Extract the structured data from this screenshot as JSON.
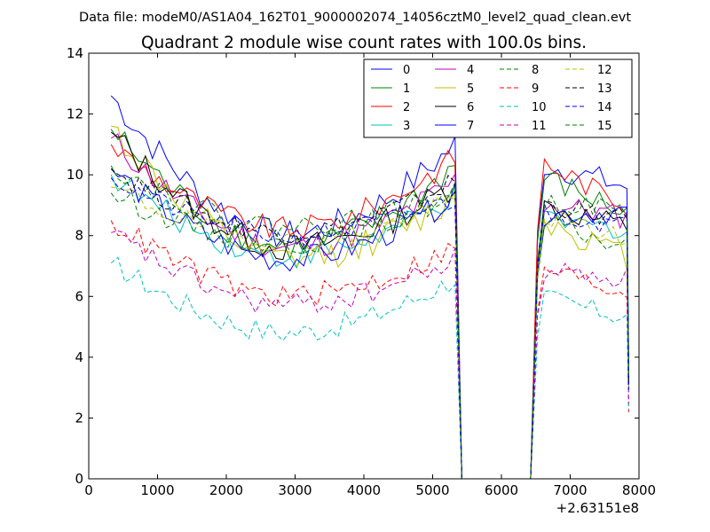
{
  "chart_data": {
    "type": "line",
    "suptitle": "Data file: modeM0/AS1A04_162T01_9000002074_14056cztM0_level2_quad_clean.evt",
    "title": "Quadrant 2 module wise count rates with 100.0s bins.",
    "xlabel": "",
    "ylabel": "",
    "xlim": [
      0,
      8000
    ],
    "ylim": [
      0,
      14
    ],
    "x_ticks": [
      0,
      1000,
      2000,
      3000,
      4000,
      5000,
      6000,
      7000,
      8000
    ],
    "x_tick_labels": [
      "0",
      "1000",
      "2000",
      "3000",
      "4000",
      "5000",
      "6000",
      "7000",
      "8000"
    ],
    "y_ticks": [
      0,
      2,
      4,
      6,
      8,
      10,
      12,
      14
    ],
    "y_tick_labels": [
      "0",
      "2",
      "4",
      "6",
      "8",
      "10",
      "12",
      "14"
    ],
    "x_offset_label": "+2.63151e8",
    "grid": false,
    "legend_position": "top-right",
    "legend_columns": 4,
    "time_grid": {
      "seg1_start": 325,
      "seg1_end": 5325,
      "gap_end": 6425,
      "seg2_start": 6525,
      "seg2_end": 7825,
      "step": 100
    },
    "series": [
      {
        "name": "0",
        "color": "#0000ff",
        "style": "solid",
        "start": 12.6,
        "min": 8.0,
        "end": 11.0,
        "seg2": [
          10.4,
          9.6
        ]
      },
      {
        "name": "1",
        "color": "#008000",
        "style": "solid",
        "start": 11.5,
        "min": 7.6,
        "end": 10.3,
        "seg2": [
          10.0,
          8.7
        ]
      },
      {
        "name": "2",
        "color": "#ff0000",
        "style": "solid",
        "start": 11.0,
        "min": 8.2,
        "end": 10.6,
        "seg2": [
          10.5,
          9.0
        ]
      },
      {
        "name": "3",
        "color": "#00bfbf",
        "style": "solid",
        "start": 10.0,
        "min": 7.3,
        "end": 9.3,
        "seg2": [
          8.5,
          8.2
        ]
      },
      {
        "name": "4",
        "color": "#bf00bf",
        "style": "solid",
        "start": 11.2,
        "min": 7.6,
        "end": 9.8,
        "seg2": [
          9.1,
          8.6
        ]
      },
      {
        "name": "5",
        "color": "#bfbf00",
        "style": "solid",
        "start": 11.6,
        "min": 7.2,
        "end": 9.2,
        "seg2": [
          8.6,
          7.3
        ]
      },
      {
        "name": "6",
        "color": "#000000",
        "style": "solid",
        "start": 11.4,
        "min": 7.6,
        "end": 9.7,
        "seg2": [
          9.0,
          8.3
        ]
      },
      {
        "name": "7",
        "color": "#0000ff",
        "style": "solid",
        "start": 10.2,
        "min": 7.2,
        "end": 9.3,
        "seg2": [
          8.7,
          8.8
        ]
      },
      {
        "name": "8",
        "color": "#008000",
        "style": "dashed",
        "start": 9.4,
        "min": 7.7,
        "end": 9.4,
        "seg2": [
          8.5,
          7.6
        ]
      },
      {
        "name": "9",
        "color": "#ff0000",
        "style": "dashed",
        "start": 8.5,
        "min": 6.0,
        "end": 7.6,
        "seg2": [
          7.0,
          6.1
        ]
      },
      {
        "name": "10",
        "color": "#00bfbf",
        "style": "dashed",
        "start": 7.1,
        "min": 4.8,
        "end": 6.6,
        "seg2": [
          6.0,
          5.3
        ]
      },
      {
        "name": "11",
        "color": "#bf00bf",
        "style": "dashed",
        "start": 8.1,
        "min": 5.7,
        "end": 7.2,
        "seg2": [
          6.9,
          6.6
        ]
      },
      {
        "name": "12",
        "color": "#bfbf00",
        "style": "dashed",
        "start": 9.6,
        "min": 7.8,
        "end": 9.2,
        "seg2": [
          8.7,
          7.9
        ]
      },
      {
        "name": "13",
        "color": "#000000",
        "style": "dashed",
        "start": 10.2,
        "min": 8.1,
        "end": 9.8,
        "seg2": [
          9.1,
          8.5
        ]
      },
      {
        "name": "14",
        "color": "#0000ff",
        "style": "dashed",
        "start": 9.9,
        "min": 8.0,
        "end": 9.2,
        "seg2": [
          8.8,
          8.3
        ]
      },
      {
        "name": "15",
        "color": "#008000",
        "style": "dashed",
        "start": 10.3,
        "min": 8.3,
        "end": 9.4,
        "seg2": [
          9.2,
          8.8
        ]
      }
    ]
  }
}
